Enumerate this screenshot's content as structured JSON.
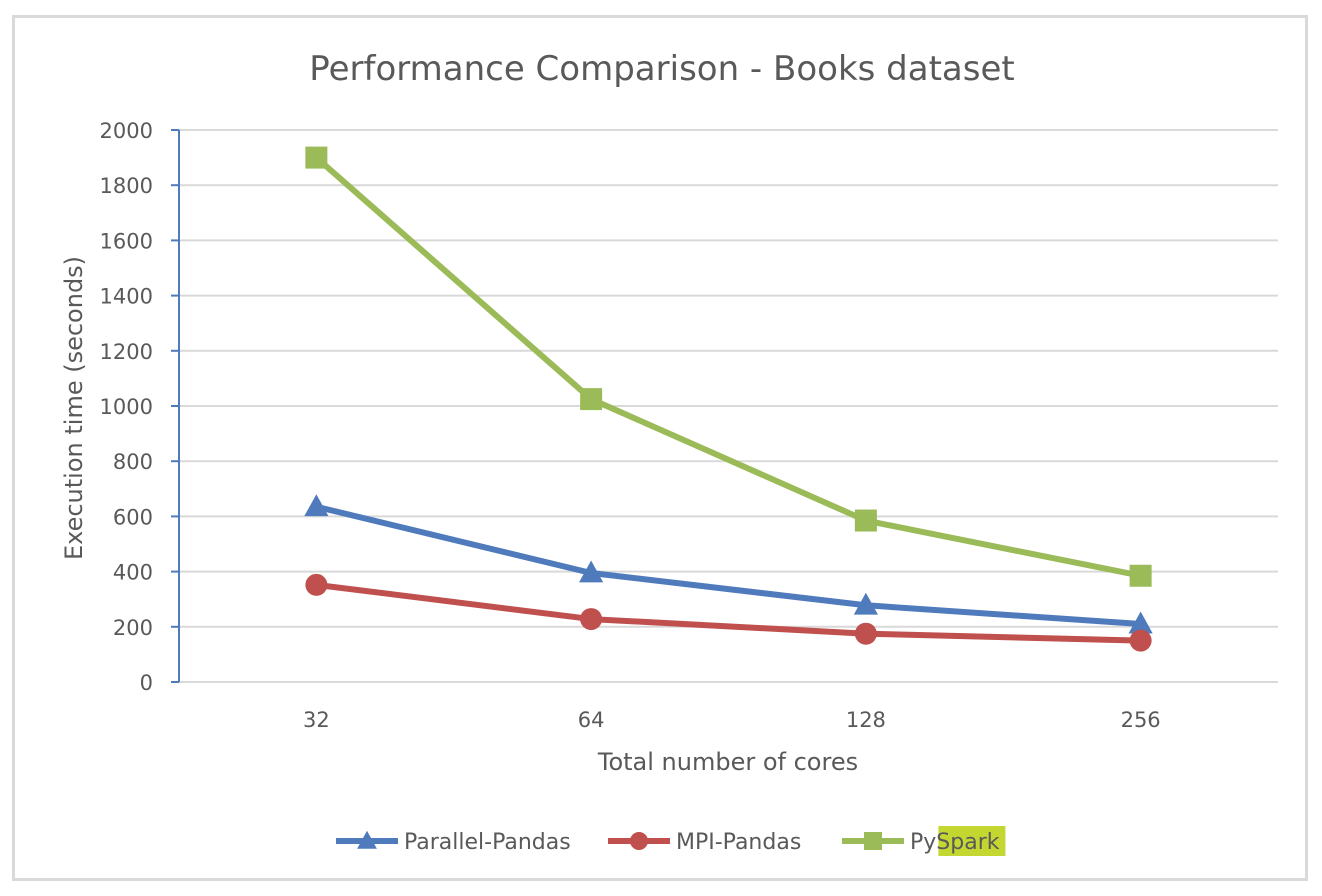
{
  "chart_data": {
    "type": "line",
    "title": "Performance Comparison - Books dataset",
    "xlabel": "Total number of cores",
    "ylabel": "Execution time (seconds)",
    "categories": [
      "32",
      "64",
      "128",
      "256"
    ],
    "ylim": [
      0,
      2000
    ],
    "yticks": [
      0,
      200,
      400,
      600,
      800,
      1000,
      1200,
      1400,
      1600,
      1800,
      2000
    ],
    "grid": true,
    "legend_position": "bottom",
    "series": [
      {
        "name": "Parallel-Pandas",
        "values": [
          635,
          395,
          278,
          210
        ],
        "color": "#4f7bbd",
        "marker": "triangle"
      },
      {
        "name": "MPI-Pandas",
        "values": [
          352,
          228,
          175,
          150
        ],
        "color": "#c0504d",
        "marker": "circle"
      },
      {
        "name": "PySpark",
        "values": [
          1900,
          1025,
          585,
          385
        ],
        "color": "#9bbb59",
        "marker": "square"
      }
    ],
    "legend_highlight": {
      "series": "PySpark",
      "text": "Spark",
      "color": "#c4d731"
    }
  }
}
